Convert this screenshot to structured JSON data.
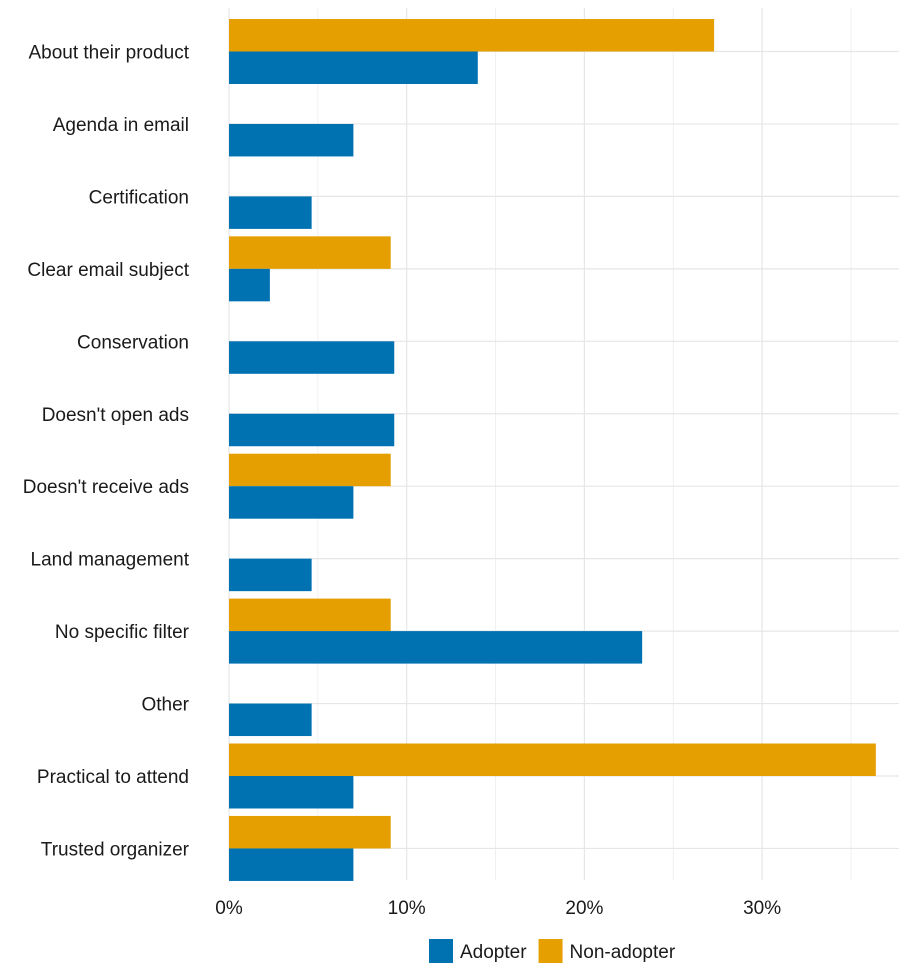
{
  "chart_data": {
    "type": "bar",
    "orientation": "horizontal",
    "categories": [
      "About their product",
      "Agenda in email",
      "Certification",
      "Clear email subject",
      "Conservation",
      "Doesn't open ads",
      "Doesn't receive ads",
      "Land management",
      "No specific filter",
      "Other",
      "Practical to attend",
      "Trusted organizer"
    ],
    "series": [
      {
        "name": "Adopter",
        "color": "#0072B2",
        "values": [
          14.0,
          7.0,
          4.65,
          2.3,
          9.3,
          9.3,
          7.0,
          4.65,
          23.25,
          4.65,
          7.0,
          7.0
        ]
      },
      {
        "name": "Non-adopter",
        "color": "#E69F00",
        "values": [
          27.3,
          0,
          0,
          9.1,
          0,
          0,
          9.1,
          0,
          9.1,
          0,
          36.4,
          9.1
        ]
      }
    ],
    "x_ticks": [
      "0%",
      "10%",
      "20%",
      "30%"
    ],
    "x_tick_values": [
      0,
      10,
      20,
      30
    ],
    "xlim": [
      0,
      37.5
    ],
    "grid": true,
    "legend_position": "bottom",
    "title": "",
    "xlabel": "",
    "ylabel": ""
  }
}
